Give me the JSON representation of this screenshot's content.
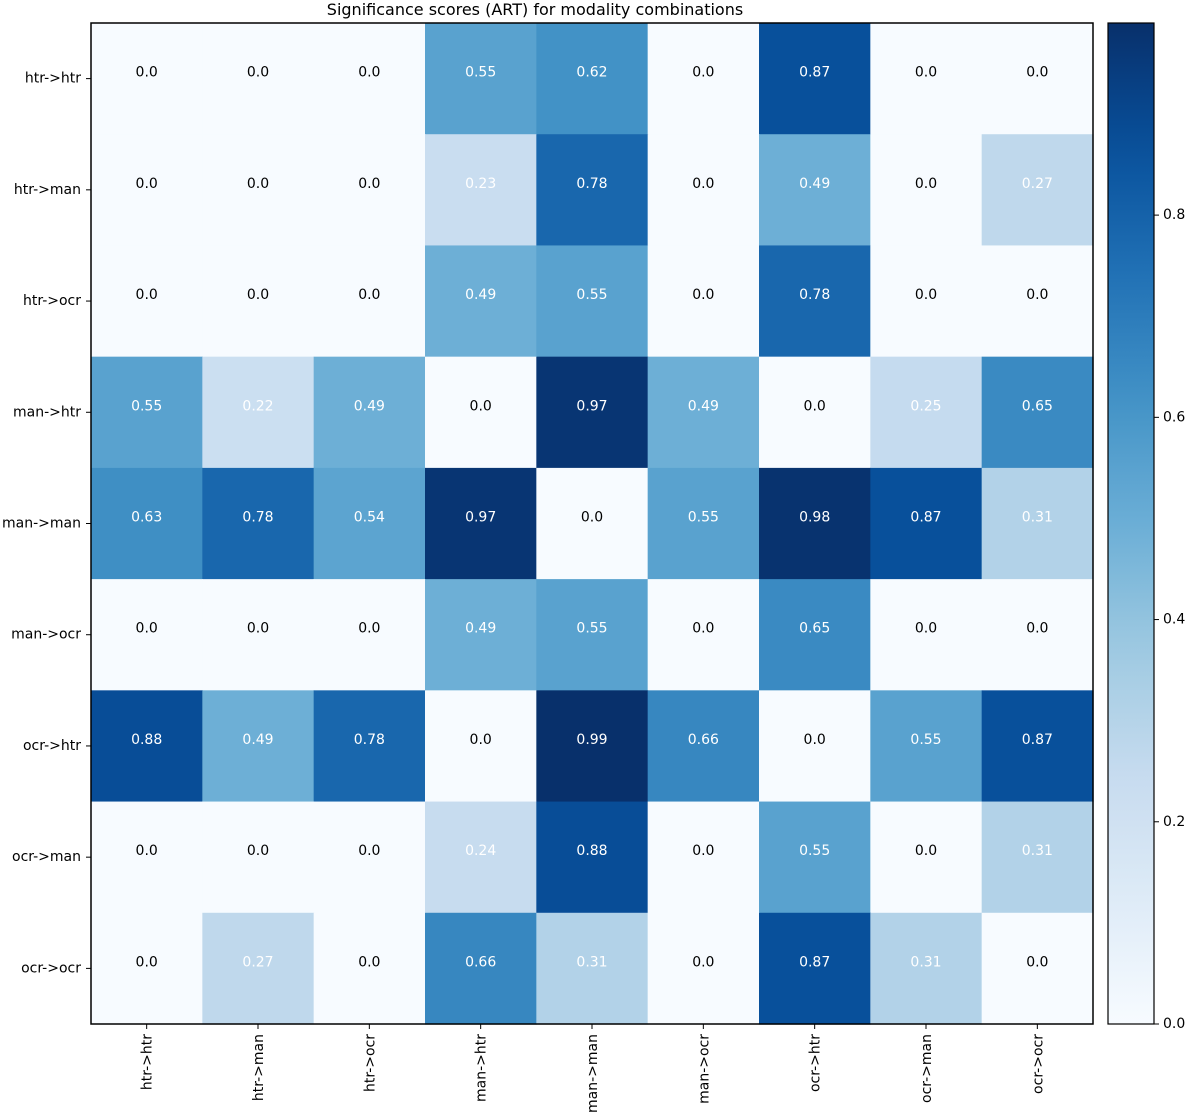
{
  "chart_data": {
    "type": "heatmap",
    "title": "Significance scores (ART) for modality combinations",
    "row_labels": [
      "htr->htr",
      "htr->man",
      "htr->ocr",
      "man->htr",
      "man->man",
      "man->ocr",
      "ocr->htr",
      "ocr->man",
      "ocr->ocr"
    ],
    "col_labels": [
      "htr->htr",
      "htr->man",
      "htr->ocr",
      "man->htr",
      "man->man",
      "man->ocr",
      "ocr->htr",
      "ocr->man",
      "ocr->ocr"
    ],
    "values": [
      [
        0.0,
        0.0,
        0.0,
        0.55,
        0.62,
        0.0,
        0.87,
        0.0,
        0.0
      ],
      [
        0.0,
        0.0,
        0.0,
        0.23,
        0.78,
        0.0,
        0.49,
        0.0,
        0.27
      ],
      [
        0.0,
        0.0,
        0.0,
        0.49,
        0.55,
        0.0,
        0.78,
        0.0,
        0.0
      ],
      [
        0.55,
        0.22,
        0.49,
        0.0,
        0.97,
        0.49,
        0.0,
        0.25,
        0.65
      ],
      [
        0.63,
        0.78,
        0.54,
        0.97,
        0.0,
        0.55,
        0.98,
        0.87,
        0.31
      ],
      [
        0.0,
        0.0,
        0.0,
        0.49,
        0.55,
        0.0,
        0.65,
        0.0,
        0.0
      ],
      [
        0.88,
        0.49,
        0.78,
        0.0,
        0.99,
        0.66,
        0.0,
        0.55,
        0.87
      ],
      [
        0.0,
        0.0,
        0.0,
        0.24,
        0.88,
        0.0,
        0.55,
        0.0,
        0.31
      ],
      [
        0.0,
        0.27,
        0.0,
        0.66,
        0.31,
        0.0,
        0.87,
        0.31,
        0.0
      ]
    ],
    "colormap": "Blues",
    "colorbar": {
      "range": [
        0.0,
        0.99
      ],
      "ticks": [
        0.0,
        0.2,
        0.4,
        0.6,
        0.8
      ],
      "tick_labels": [
        "0.0",
        "0.2",
        "0.4",
        "0.6",
        "0.8"
      ]
    },
    "grid": false
  }
}
